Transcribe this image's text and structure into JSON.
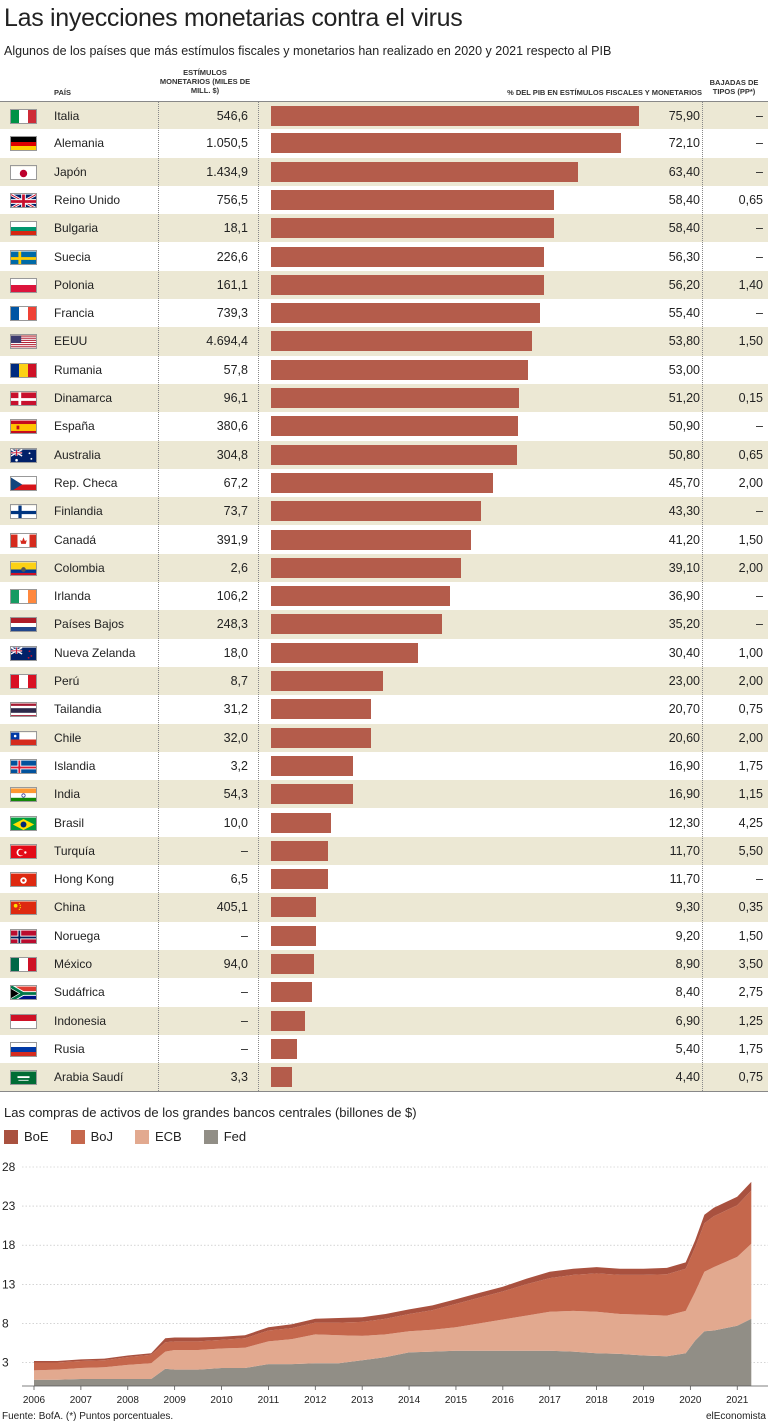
{
  "title": "Las inyecciones monetarias contra el virus",
  "subtitle": "Algunos de los países que más estímulos fiscales y monetarios han realizado en 2020 y 2021 respecto al PIB",
  "headers": {
    "pais": "PAÍS",
    "estimulos": "ESTÍMULOS MONETARIOS (MILES DE MILL. $)",
    "pct": "% DEL PIB EN ESTÍMULOS FISCALES Y MONETARIOS",
    "bajadas": "BAJADAS DE TIPOS (PP*)"
  },
  "source": "Fuente: BofA. (*) Puntos porcentuales.",
  "brand": "elEconomista",
  "colors": {
    "bar": "#b45c4b",
    "shade": "#ece8d4",
    "boe": "#a9513f",
    "boj": "#c5674c",
    "ecb": "#e2a98f",
    "fed": "#918e86"
  },
  "chart_data": [
    {
      "type": "bar",
      "categories": [
        "Italia",
        "Alemania",
        "Japón",
        "Reino Unido",
        "Bulgaria",
        "Suecia",
        "Polonia",
        "Francia",
        "EEUU",
        "Rumania",
        "Dinamarca",
        "España",
        "Australia",
        "Rep. Checa",
        "Finlandia",
        "Canadá",
        "Colombia",
        "Irlanda",
        "Países Bajos",
        "Nueva Zelanda",
        "Perú",
        "Tailandia",
        "Chile",
        "Islandia",
        "India",
        "Brasil",
        "Turquía",
        "Hong Kong",
        "China",
        "Noruega",
        "México",
        "Sudáfrica",
        "Indonesia",
        "Rusia",
        "Arabia Saudí"
      ],
      "stimulus_label": [
        "546,6",
        "1.050,5",
        "1.434,9",
        "756,5",
        "18,1",
        "226,6",
        "161,1",
        "739,3",
        "4.694,4",
        "57,8",
        "96,1",
        "380,6",
        "304,8",
        "67,2",
        "73,7",
        "391,9",
        "2,6",
        "106,2",
        "248,3",
        "18,0",
        "8,7",
        "31,2",
        "32,0",
        "3,2",
        "54,3",
        "10,0",
        "–",
        "6,5",
        "405,1",
        "–",
        "94,0",
        "–",
        "–",
        "–",
        "3,3"
      ],
      "values": [
        75.9,
        72.1,
        63.4,
        58.4,
        58.4,
        56.3,
        56.2,
        55.4,
        53.8,
        53.0,
        51.2,
        50.9,
        50.8,
        45.7,
        43.3,
        41.2,
        39.1,
        36.9,
        35.2,
        30.4,
        23.0,
        20.7,
        20.6,
        16.9,
        16.9,
        12.3,
        11.7,
        11.7,
        9.3,
        9.2,
        8.9,
        8.4,
        6.9,
        5.4,
        4.4
      ],
      "value_labels": [
        "75,90",
        "72,10",
        "63,40",
        "58,40",
        "58,40",
        "56,30",
        "56,20",
        "55,40",
        "53,80",
        "53,00",
        "51,20",
        "50,90",
        "50,80",
        "45,70",
        "43,30",
        "41,20",
        "39,10",
        "36,90",
        "35,20",
        "30,40",
        "23,00",
        "20,70",
        "20,60",
        "16,90",
        "16,90",
        "12,30",
        "11,70",
        "11,70",
        "9,30",
        "9,20",
        "8,90",
        "8,40",
        "6,90",
        "5,40",
        "4,40"
      ],
      "rate_cuts": [
        "–",
        "–",
        "–",
        "0,65",
        "–",
        "–",
        "1,40",
        "–",
        "1,50",
        "",
        "0,15",
        "–",
        "0,65",
        "2,00",
        "–",
        "1,50",
        "2,00",
        "–",
        "–",
        "1,00",
        "2,00",
        "0,75",
        "2,00",
        "1,75",
        "1,15",
        "4,25",
        "5,50",
        "–",
        "0,35",
        "1,50",
        "3,50",
        "2,75",
        "1,25",
        "1,75",
        "0,75"
      ],
      "flags": [
        [
          "v",
          "#009246",
          "#ffffff",
          "#ce2b37"
        ],
        [
          "h",
          "#000000",
          "#dd0000",
          "#ffce00"
        ],
        [
          "jp"
        ],
        [
          "uk"
        ],
        [
          "h",
          "#ffffff",
          "#00966e",
          "#d62612"
        ],
        [
          "se"
        ],
        [
          "h",
          "#ffffff",
          "#dc143c"
        ],
        [
          "v",
          "#0055a4",
          "#ffffff",
          "#ef4135"
        ],
        [
          "us"
        ],
        [
          "v",
          "#002b7f",
          "#fcd116",
          "#ce1126"
        ],
        [
          "dk"
        ],
        [
          "es"
        ],
        [
          "au"
        ],
        [
          "cz"
        ],
        [
          "fi"
        ],
        [
          "ca"
        ],
        [
          "co"
        ],
        [
          "v",
          "#169b62",
          "#ffffff",
          "#ff883e"
        ],
        [
          "h",
          "#ae1c28",
          "#ffffff",
          "#21468b"
        ],
        [
          "nz"
        ],
        [
          "v",
          "#d91023",
          "#ffffff",
          "#d91023"
        ],
        [
          "th"
        ],
        [
          "cl"
        ],
        [
          "is"
        ],
        [
          "in"
        ],
        [
          "br"
        ],
        [
          "tr"
        ],
        [
          "hk"
        ],
        [
          "cn"
        ],
        [
          "no"
        ],
        [
          "v",
          "#006847",
          "#ffffff",
          "#ce1126"
        ],
        [
          "za"
        ],
        [
          "h",
          "#ce1126",
          "#ffffff"
        ],
        [
          "h",
          "#ffffff",
          "#0039a6",
          "#d52b1e"
        ],
        [
          "sa"
        ]
      ],
      "xlim": [
        0,
        80
      ]
    },
    {
      "type": "area",
      "title": "Las compras de activos de los grandes bancos centrales (billones de $)",
      "stacked": true,
      "order": [
        "Fed",
        "ECB",
        "BoJ",
        "BoE"
      ],
      "x": [
        2006,
        2006.5,
        2007,
        2007.5,
        2008,
        2008.5,
        2008.8,
        2009,
        2009.5,
        2010,
        2010.5,
        2011,
        2011.5,
        2012,
        2012.5,
        2013,
        2013.5,
        2014,
        2014.5,
        2015,
        2015.5,
        2016,
        2016.5,
        2017,
        2017.5,
        2018,
        2018.5,
        2019,
        2019.5,
        2019.9,
        2020.1,
        2020.3,
        2020.5,
        2021,
        2021.3
      ],
      "series": [
        {
          "name": "Fed",
          "values": [
            0.8,
            0.8,
            0.9,
            0.9,
            0.9,
            0.9,
            2.2,
            2.1,
            2.1,
            2.3,
            2.3,
            2.8,
            2.8,
            2.9,
            2.9,
            3.3,
            3.7,
            4.3,
            4.4,
            4.5,
            4.5,
            4.5,
            4.5,
            4.5,
            4.4,
            4.2,
            4.1,
            3.9,
            3.8,
            4.2,
            5.8,
            7.0,
            7.1,
            7.7,
            8.6
          ]
        },
        {
          "name": "ECB",
          "values": [
            1.2,
            1.3,
            1.4,
            1.5,
            1.8,
            2.0,
            2.2,
            2.5,
            2.5,
            2.5,
            2.6,
            2.9,
            3.2,
            3.7,
            3.6,
            3.1,
            2.9,
            2.7,
            2.8,
            3.0,
            3.5,
            4.0,
            4.5,
            5.0,
            5.2,
            5.3,
            5.1,
            5.2,
            5.2,
            5.4,
            6.2,
            7.6,
            8.1,
            8.8,
            9.6
          ]
        },
        {
          "name": "BoJ",
          "values": [
            1.0,
            0.9,
            0.9,
            0.9,
            1.0,
            1.1,
            1.2,
            1.1,
            1.1,
            1.1,
            1.2,
            1.4,
            1.4,
            1.5,
            1.6,
            1.8,
            2.0,
            2.2,
            2.5,
            3.0,
            3.3,
            3.6,
            4.0,
            4.3,
            4.6,
            4.9,
            5.0,
            5.1,
            5.3,
            5.4,
            5.7,
            6.2,
            6.5,
            6.6,
            6.8
          ]
        },
        {
          "name": "BoE",
          "values": [
            0.2,
            0.2,
            0.2,
            0.2,
            0.2,
            0.2,
            0.5,
            0.5,
            0.5,
            0.4,
            0.4,
            0.4,
            0.5,
            0.5,
            0.6,
            0.6,
            0.6,
            0.6,
            0.6,
            0.6,
            0.6,
            0.6,
            0.7,
            0.8,
            0.8,
            0.8,
            0.8,
            0.8,
            0.8,
            0.8,
            0.9,
            1.1,
            1.1,
            1.1,
            1.1
          ]
        }
      ],
      "legend": [
        "BoE",
        "BoJ",
        "ECB",
        "Fed"
      ],
      "yticks": [
        3,
        8,
        13,
        18,
        23,
        28
      ],
      "ylim": [
        0,
        28
      ],
      "xticks": [
        "2006",
        "2007",
        "2008",
        "2009",
        "2010",
        "2011",
        "2012",
        "2013",
        "2014",
        "2015",
        "2016",
        "2017",
        "2018",
        "2019",
        "2020",
        "2021"
      ],
      "grid": true
    }
  ]
}
